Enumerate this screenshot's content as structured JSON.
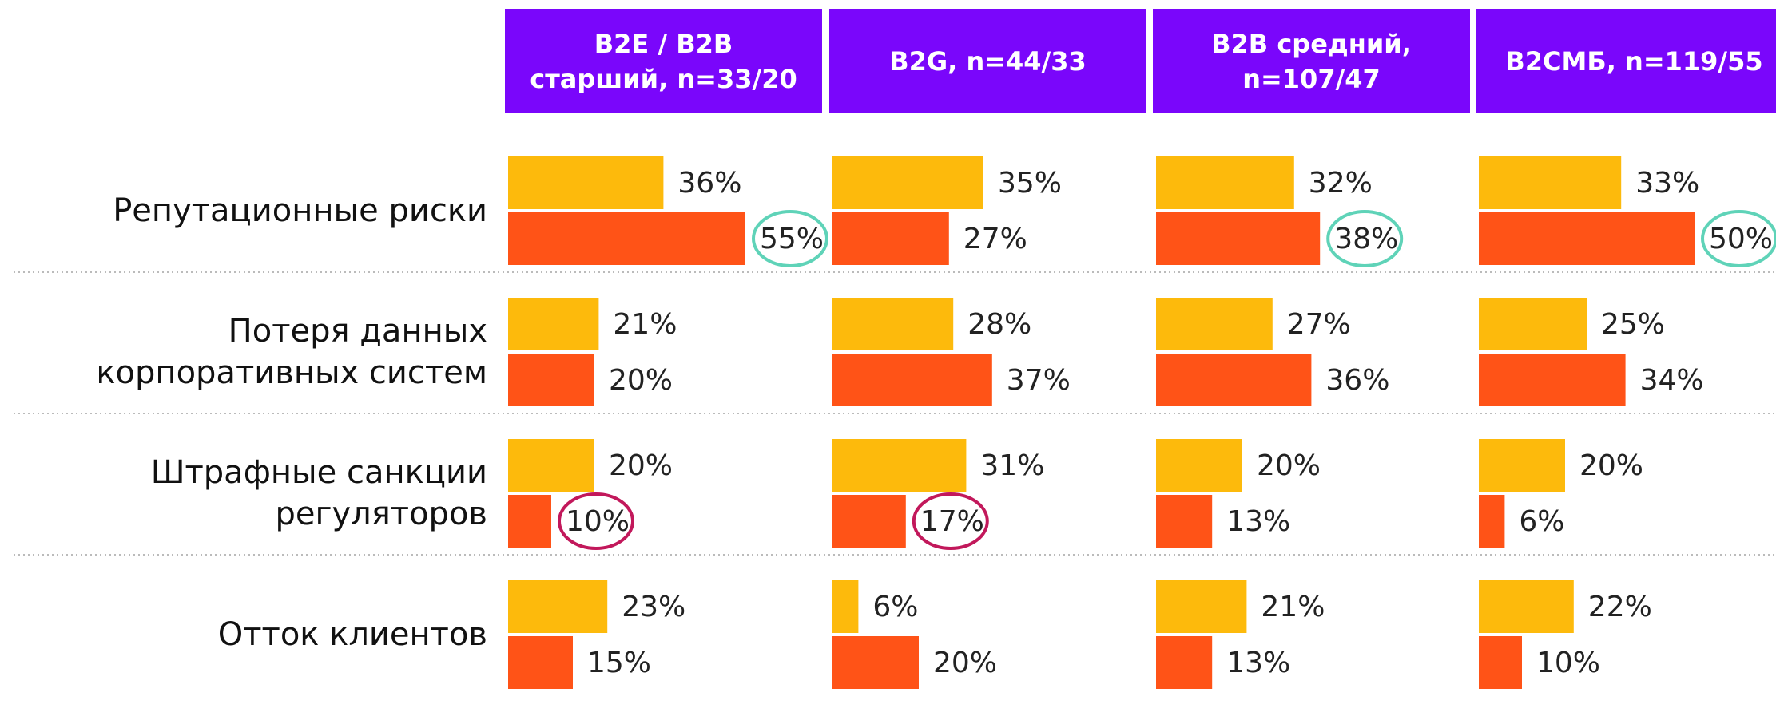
{
  "chart_data": {
    "type": "bar",
    "categories": [
      "Репутационные риски",
      "Потеря данных корпоративных систем",
      "Штрафные санкции регуляторов",
      "Отток клиентов"
    ],
    "header_color": "#7a06fb",
    "panels": [
      {
        "title": "B2E / B2B старший, n=33/20",
        "series": [
          {
            "color": "#fdba0c",
            "values": [
              36,
              21,
              20,
              23
            ],
            "value_labels": [
              "36%",
              "21%",
              "20%",
              "23%"
            ]
          },
          {
            "color": "#ff5317",
            "values": [
              55,
              20,
              10,
              15
            ],
            "value_labels": [
              "55%",
              "20%",
              "10%",
              "15%"
            ]
          }
        ],
        "highlights": [
          {
            "series": 1,
            "index": 0,
            "color": "#5fd3b8"
          },
          {
            "series": 1,
            "index": 2,
            "color": "#c2185b"
          }
        ]
      },
      {
        "title": "B2G, n=44/33",
        "series": [
          {
            "color": "#fdba0c",
            "values": [
              35,
              28,
              31,
              6
            ],
            "value_labels": [
              "35%",
              "28%",
              "31%",
              "6%"
            ]
          },
          {
            "color": "#ff5317",
            "values": [
              27,
              37,
              17,
              20
            ],
            "value_labels": [
              "27%",
              "37%",
              "17%",
              "20%"
            ]
          }
        ],
        "highlights": [
          {
            "series": 1,
            "index": 2,
            "color": "#c2185b"
          }
        ]
      },
      {
        "title": "B2B средний, n=107/47",
        "series": [
          {
            "color": "#fdba0c",
            "values": [
              32,
              27,
              20,
              21
            ],
            "value_labels": [
              "32%",
              "27%",
              "20%",
              "21%"
            ]
          },
          {
            "color": "#ff5317",
            "values": [
              38,
              36,
              13,
              13
            ],
            "value_labels": [
              "38%",
              "36%",
              "13%",
              "13%"
            ]
          }
        ],
        "highlights": [
          {
            "series": 1,
            "index": 0,
            "color": "#5fd3b8"
          }
        ]
      },
      {
        "title": "B2СМБ, n=119/55",
        "series": [
          {
            "color": "#fdba0c",
            "values": [
              33,
              25,
              20,
              22
            ],
            "value_labels": [
              "33%",
              "25%",
              "20%",
              "22%"
            ]
          },
          {
            "color": "#ff5317",
            "values": [
              50,
              34,
              6,
              10
            ],
            "value_labels": [
              "50%",
              "34%",
              "6%",
              "10%"
            ]
          }
        ],
        "highlights": [
          {
            "series": 1,
            "index": 0,
            "color": "#5fd3b8"
          }
        ]
      }
    ]
  }
}
